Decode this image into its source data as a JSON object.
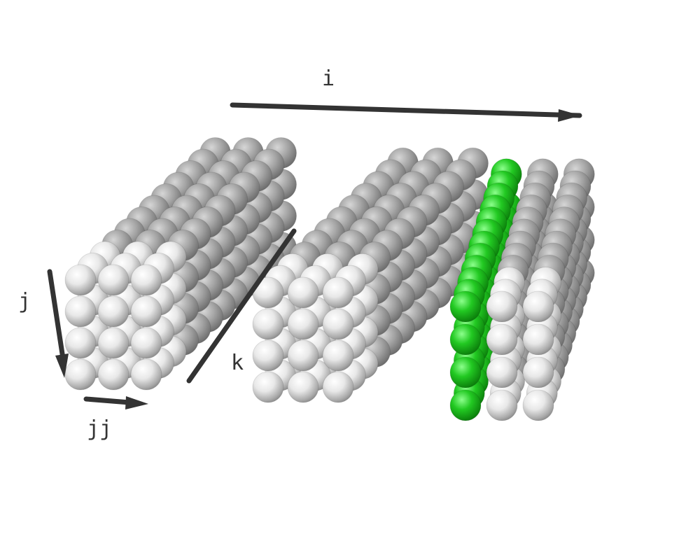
{
  "axes": {
    "i": "i",
    "j": "j",
    "jj": "jj",
    "k": "k"
  },
  "colors": {
    "arrow": "#333333",
    "sphere_white": "#f2f2f2",
    "sphere_green": "#1fc91f",
    "background": "#ffffff"
  },
  "blocks": [
    {
      "name": "block-full",
      "columns": 3,
      "rows": 4,
      "depth": 12,
      "highlight": "none"
    },
    {
      "name": "block-middle",
      "columns": 3,
      "rows": 4,
      "depth": 12,
      "highlight": "none"
    },
    {
      "name": "block-split",
      "columns": 3,
      "rows": 4,
      "depth": 12,
      "highlight": "first-column",
      "highlight_color": "green"
    }
  ]
}
